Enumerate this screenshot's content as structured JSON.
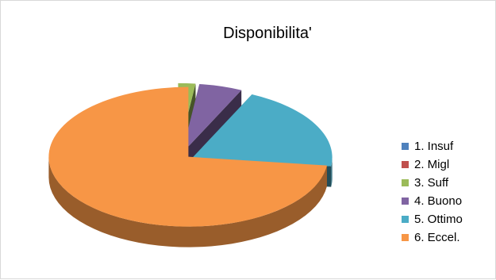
{
  "chart_data": {
    "type": "pie",
    "title": "Disponibilita'",
    "categories": [
      "1. Insuf",
      "2. Migl",
      "3. Suff",
      "4. Buono",
      "5. Ottimo",
      "6. Eccel."
    ],
    "values": [
      0,
      0,
      2,
      5,
      20,
      73
    ],
    "colors": [
      "#4F81BD",
      "#C0504D",
      "#9BBB59",
      "#8064A2",
      "#4BACC6",
      "#F79646"
    ],
    "legend_position": "right",
    "style": "3d-exploded"
  }
}
